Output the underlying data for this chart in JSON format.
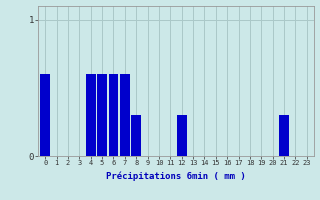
{
  "xlabel": "Précipitations 6min ( mm )",
  "hours": [
    0,
    1,
    2,
    3,
    4,
    5,
    6,
    7,
    8,
    9,
    10,
    11,
    12,
    13,
    14,
    15,
    16,
    17,
    18,
    19,
    20,
    21,
    22,
    23
  ],
  "values": [
    0.6,
    0.0,
    0.0,
    0.0,
    0.6,
    0.6,
    0.6,
    0.6,
    0.3,
    0.0,
    0.0,
    0.0,
    0.3,
    0.0,
    0.0,
    0.0,
    0.0,
    0.0,
    0.0,
    0.0,
    0.0,
    0.3,
    0.0,
    0.0
  ],
  "bar_color": "#0000cc",
  "background_color": "#cce8e8",
  "grid_color": "#aac8c8",
  "ylim": [
    0,
    1.1
  ],
  "ytick_vals": [
    0,
    1
  ],
  "ytick_labels": [
    "0",
    "1"
  ],
  "bar_width": 0.85,
  "xlabel_fontsize": 6.5,
  "tick_fontsize": 5.0,
  "ytick_fontsize": 6.5
}
